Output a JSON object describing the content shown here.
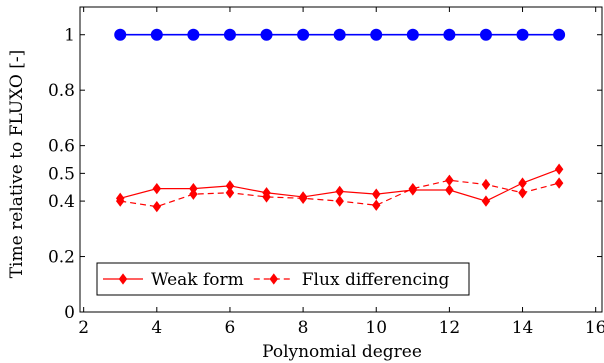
{
  "chart_data": {
    "type": "line",
    "title": "",
    "xlabel": "Polynomial degree",
    "ylabel": "Time relative to FLUXO [-]",
    "xlim": [
      1.9,
      16.2
    ],
    "ylim": [
      0,
      1.1
    ],
    "x_ticks": [
      2,
      4,
      6,
      8,
      10,
      12,
      14,
      16
    ],
    "y_ticks": [
      0,
      0.2,
      0.4,
      0.5,
      0.6,
      0.8,
      1
    ],
    "y_tick_labels": [
      "0",
      "0.2",
      "0.4",
      "0.5",
      "0.6",
      "0.8",
      "1"
    ],
    "grid": false,
    "legend_position": "bottom-left",
    "x": [
      3,
      4,
      5,
      6,
      7,
      8,
      9,
      10,
      11,
      12,
      13,
      14,
      15
    ],
    "series": [
      {
        "legend": false,
        "style": "solid",
        "marker": "circle",
        "color": "#0000ff",
        "values": [
          1,
          1,
          1,
          1,
          1,
          1,
          1,
          1,
          1,
          1,
          1,
          1,
          1
        ]
      },
      {
        "name": "Weak form",
        "legend": true,
        "style": "solid",
        "marker": "diamond",
        "color": "#ff0000",
        "values": [
          0.41,
          0.445,
          0.445,
          0.455,
          0.43,
          0.415,
          0.435,
          0.425,
          0.44,
          0.44,
          0.4,
          0.465,
          0.515
        ]
      },
      {
        "name": "Flux differencing",
        "legend": true,
        "style": "dashed",
        "marker": "diamond",
        "color": "#ff0000",
        "values": [
          0.4,
          0.38,
          0.425,
          0.43,
          0.415,
          0.41,
          0.4,
          0.385,
          0.445,
          0.475,
          0.46,
          0.43,
          0.465
        ]
      }
    ]
  }
}
